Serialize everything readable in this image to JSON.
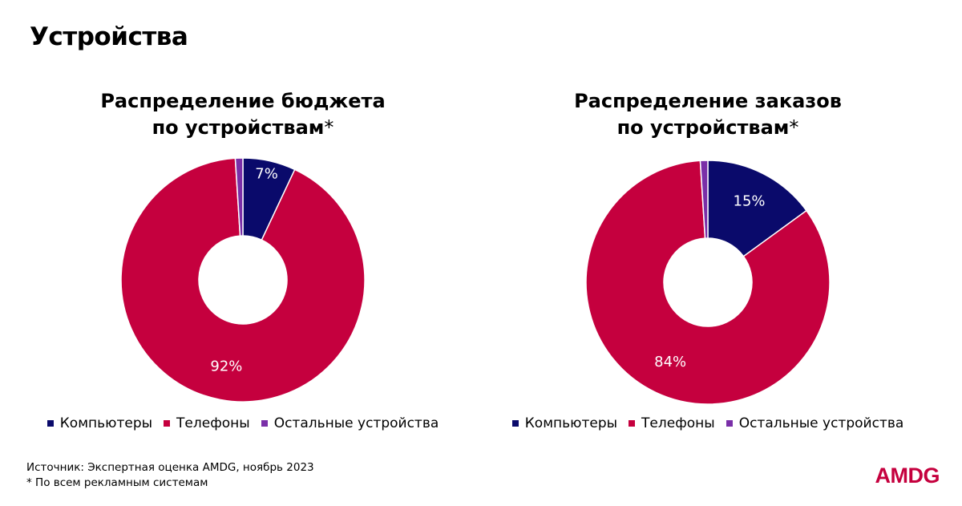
{
  "page": {
    "title": "Устройства",
    "brand": "AMDG",
    "footer": {
      "source": "Источник: Экспертная оценка AMDG, ноябрь 2023",
      "note": "* По всем рекламным системам"
    }
  },
  "colors": {
    "computers": "#0a0a6b",
    "phones": "#c5003e",
    "others": "#7a2fa8"
  },
  "chart_data": [
    {
      "type": "pie",
      "donut": true,
      "title_lines": [
        "Распределение бюджета",
        "по устройствам"
      ],
      "title_suffix": "*",
      "categories": [
        "Компьютеры",
        "Телефоны",
        "Остальные устройства"
      ],
      "values": [
        7,
        92,
        1
      ],
      "data_labels": [
        "7%",
        "92%",
        ""
      ],
      "legend_position": "bottom"
    },
    {
      "type": "pie",
      "donut": true,
      "title_lines": [
        "Распределение заказов",
        "по устройствам"
      ],
      "title_suffix": "*",
      "categories": [
        "Компьютеры",
        "Телефоны",
        "Остальные устройства"
      ],
      "values": [
        15,
        84,
        1
      ],
      "data_labels": [
        "15%",
        "84%",
        ""
      ],
      "legend_position": "bottom"
    }
  ]
}
